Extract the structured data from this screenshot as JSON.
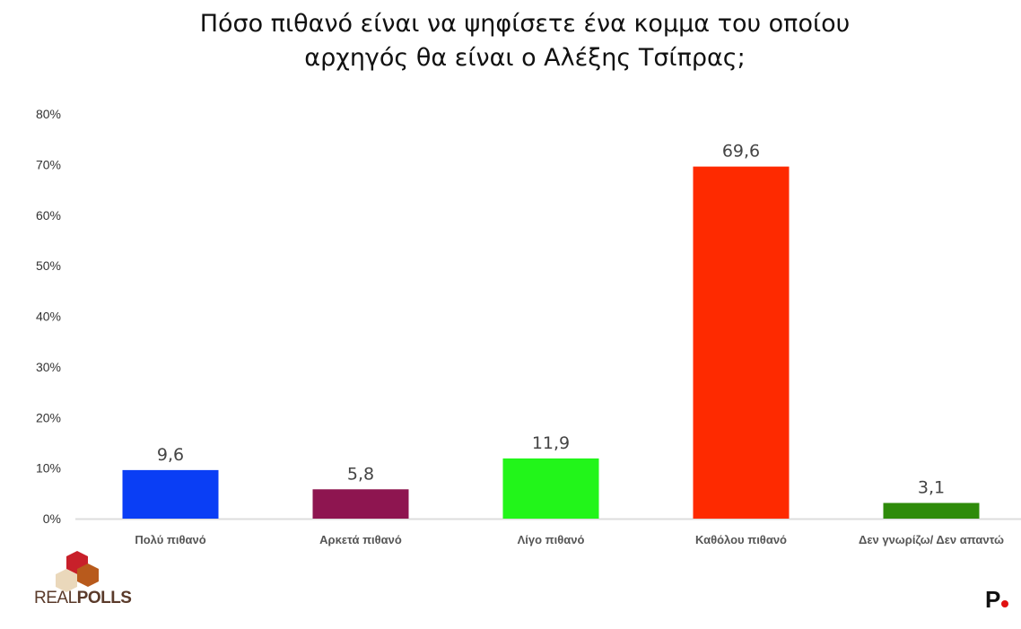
{
  "chart_data": {
    "type": "bar",
    "title": "Πόσο πιθανό είναι να ψηφίσετε ένα κομμα του οποίου αρχηγός θα είναι ο Αλέξης Τσίπρας;",
    "title_lines": [
      "Πόσο πιθανό είναι να ψηφίσετε ένα κομμα του οποίου",
      "αρχηγός θα είναι ο Αλέξης Τσίπρας;"
    ],
    "categories": [
      "Πολύ πιθανό",
      "Αρκετά πιθανό",
      "Λίγο πιθανό",
      "Καθόλου πιθανό",
      "Δεν γνωρίζω/ Δεν απαντώ"
    ],
    "values": [
      9.6,
      5.8,
      11.9,
      69.6,
      3.1
    ],
    "value_labels": [
      "9,6",
      "5,8",
      "11,9",
      "69,6",
      "3,1"
    ],
    "colors": [
      "#0a3ef5",
      "#8e1550",
      "#22f51a",
      "#fe2a00",
      "#2e8b0a"
    ],
    "xlabel": "",
    "ylabel": "",
    "ylim": [
      0,
      80
    ],
    "yticks": [
      "0%",
      "10%",
      "20%",
      "30%",
      "40%",
      "50%",
      "60%",
      "70%",
      "80%"
    ],
    "grid": false,
    "legend": "none"
  },
  "logos": {
    "left": "REALPOLLS",
    "right": "P."
  }
}
